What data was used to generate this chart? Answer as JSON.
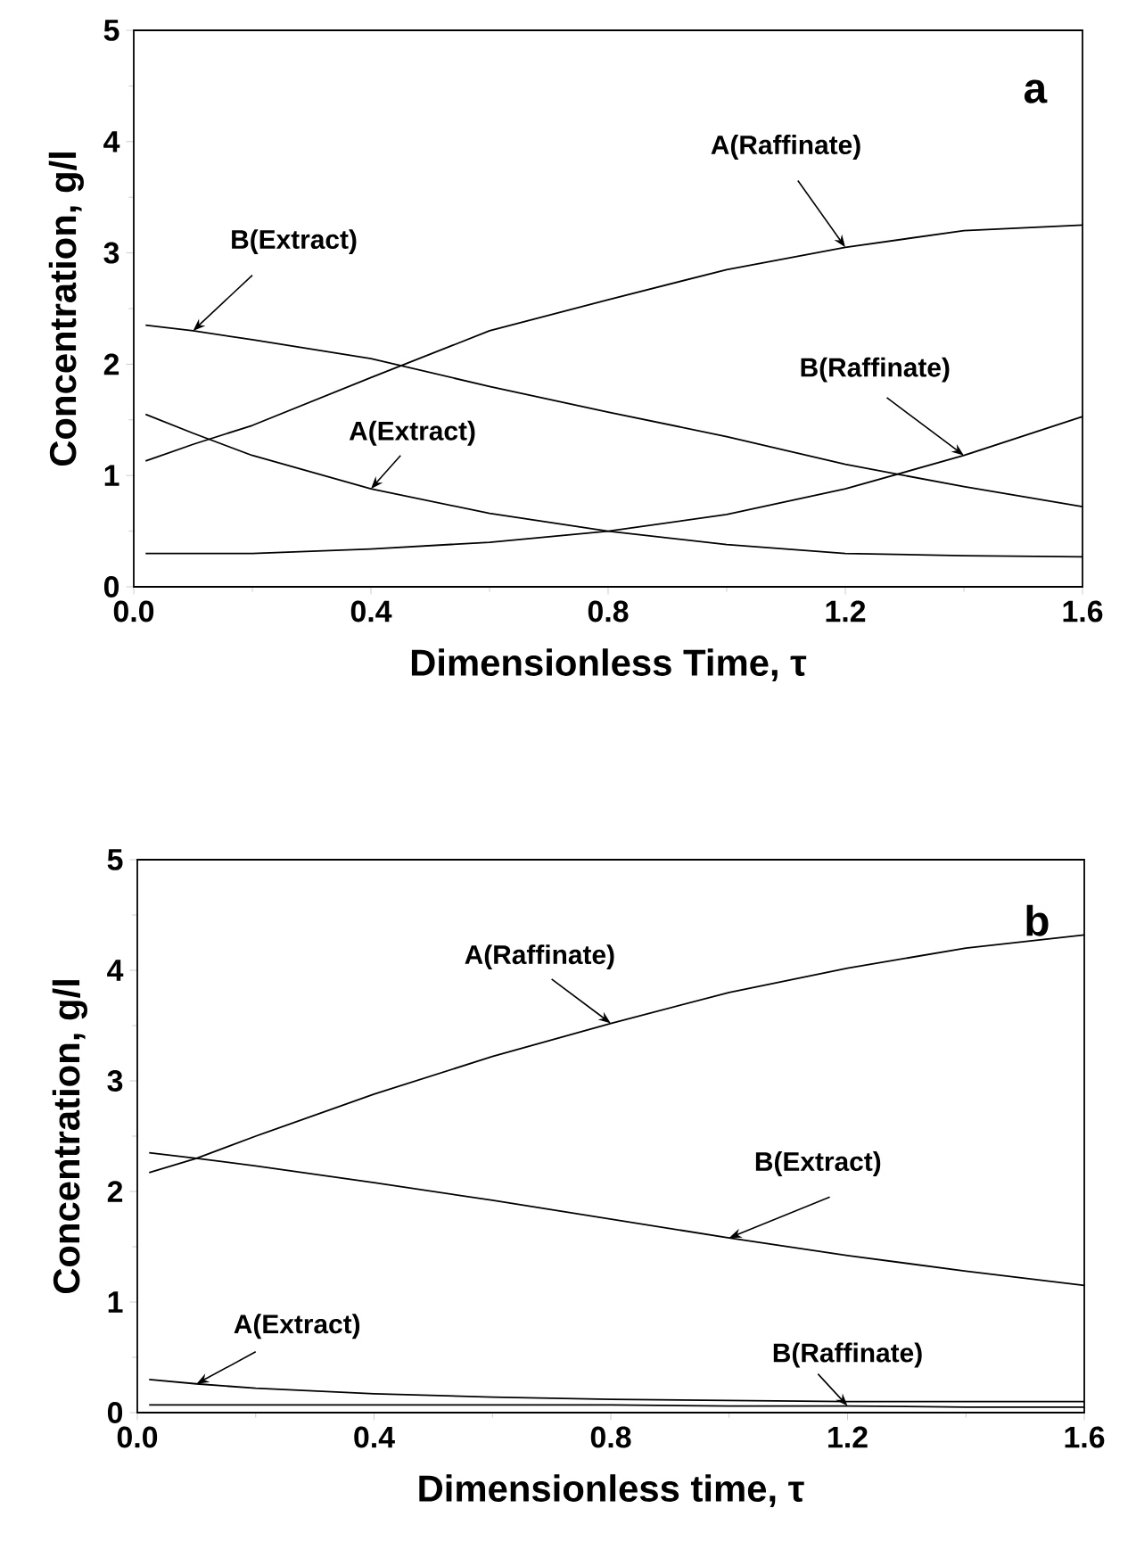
{
  "chart_data": [
    {
      "type": "line",
      "title": "a",
      "xlabel": "Dimensionless Time, τ",
      "ylabel": "Concentration,  g/l",
      "x": [
        0.02,
        0.1,
        0.2,
        0.4,
        0.6,
        0.8,
        1.0,
        1.2,
        1.4,
        1.6
      ],
      "xlim": [
        0,
        1.6
      ],
      "ylim": [
        0,
        5
      ],
      "xticks": [
        {
          "value": 0,
          "label": "0.0"
        },
        0.4,
        0.8,
        1.2,
        1.6
      ],
      "yticks": [
        0,
        1,
        2,
        3,
        4,
        5
      ],
      "marker": "none",
      "line_style": "solid",
      "legend": false,
      "series": [
        {
          "name": "A(Raffinate)",
          "color": "#000000",
          "values": [
            1.13,
            1.28,
            1.45,
            1.88,
            2.3,
            2.58,
            2.85,
            3.05,
            3.2,
            3.25
          ]
        },
        {
          "name": "B(Extract)",
          "color": "#000000",
          "values": [
            2.35,
            2.3,
            2.22,
            2.05,
            1.8,
            1.57,
            1.35,
            1.1,
            0.9,
            0.72
          ]
        },
        {
          "name": "A(Extract)",
          "color": "#000000",
          "values": [
            1.55,
            1.38,
            1.18,
            0.88,
            0.66,
            0.5,
            0.38,
            0.3,
            0.28,
            0.27
          ]
        },
        {
          "name": "B(Raffinate)",
          "color": "#000000",
          "values": [
            0.3,
            0.3,
            0.3,
            0.34,
            0.4,
            0.5,
            0.65,
            0.88,
            1.18,
            1.53
          ]
        }
      ]
    },
    {
      "type": "line",
      "title": "b",
      "xlabel": "Dimensionless time,  τ",
      "ylabel": "Concentration,  g/l",
      "x": [
        0.02,
        0.1,
        0.2,
        0.4,
        0.6,
        0.8,
        1.0,
        1.2,
        1.4,
        1.6
      ],
      "xlim": [
        0,
        1.6
      ],
      "ylim": [
        0,
        5
      ],
      "xticks": [
        {
          "value": 0,
          "label": "0.0"
        },
        0.4,
        0.8,
        1.2,
        1.6
      ],
      "yticks": [
        0,
        1,
        2,
        3,
        4,
        5
      ],
      "marker": "none",
      "line_style": "solid",
      "legend": false,
      "series": [
        {
          "name": "A(Raffinate)",
          "color": "#000000",
          "values": [
            2.17,
            2.3,
            2.5,
            2.88,
            3.22,
            3.52,
            3.8,
            4.02,
            4.2,
            4.32
          ]
        },
        {
          "name": "B(Extract)",
          "color": "#000000",
          "values": [
            2.35,
            2.3,
            2.23,
            2.08,
            1.92,
            1.75,
            1.58,
            1.42,
            1.28,
            1.15
          ]
        },
        {
          "name": "A(Extract)",
          "color": "#000000",
          "values": [
            0.3,
            0.26,
            0.22,
            0.17,
            0.14,
            0.12,
            0.11,
            0.1,
            0.1,
            0.1
          ]
        },
        {
          "name": "B(Raffinate)",
          "color": "#000000",
          "values": [
            0.07,
            0.07,
            0.07,
            0.07,
            0.07,
            0.07,
            0.06,
            0.06,
            0.05,
            0.05
          ]
        }
      ]
    }
  ]
}
